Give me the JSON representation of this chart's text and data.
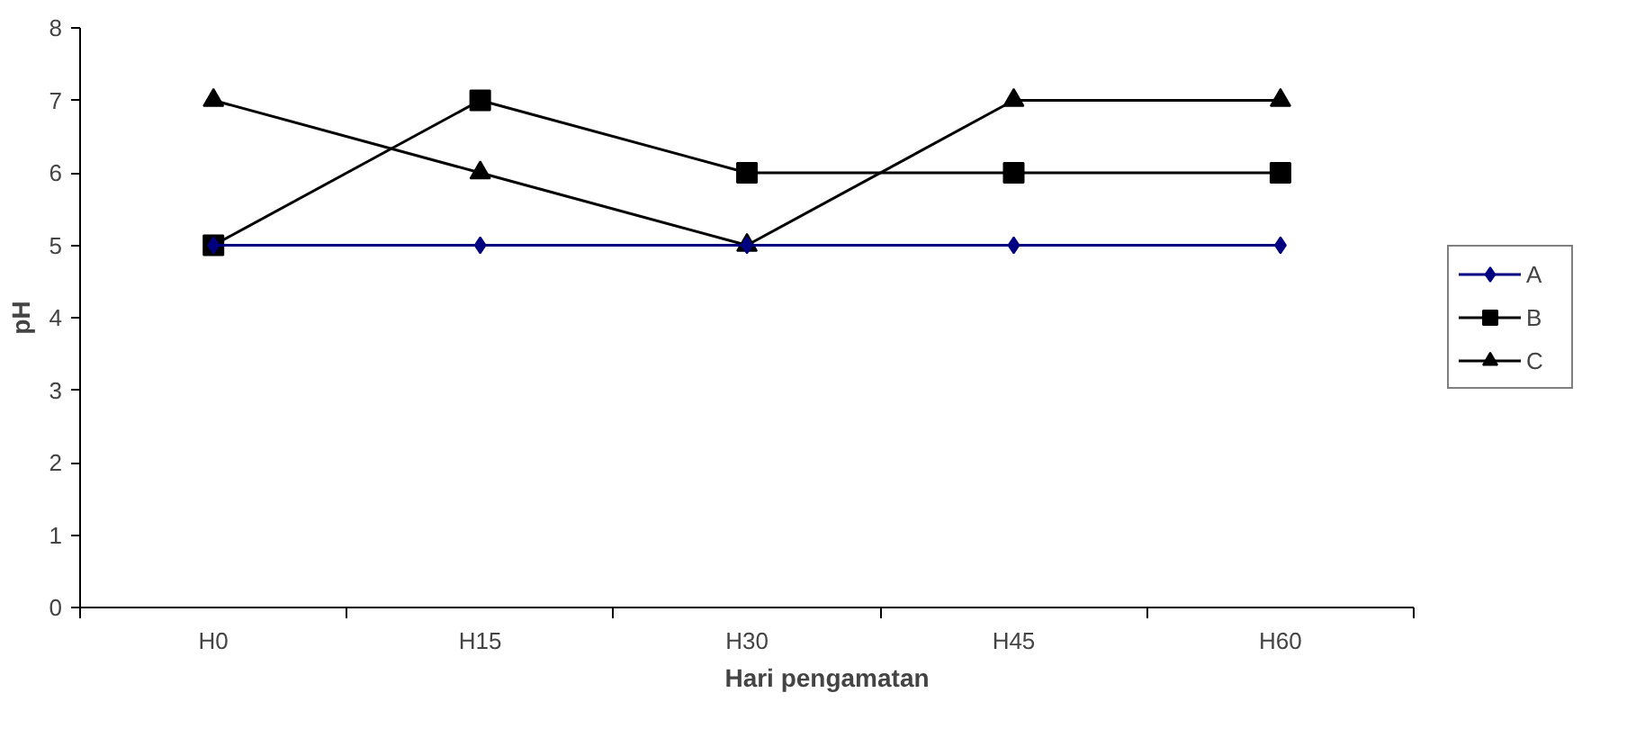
{
  "chart_data": {
    "type": "line",
    "xlabel": "Hari pengamatan",
    "ylabel": "pH",
    "categories": [
      "H0",
      "H15",
      "H30",
      "H45",
      "H60"
    ],
    "series": [
      {
        "name": "A",
        "color": "#000080",
        "values": [
          5,
          5,
          5,
          5,
          5
        ],
        "marker": "diamond"
      },
      {
        "name": "B",
        "color": "#000000",
        "values": [
          5,
          7,
          6,
          6,
          6
        ],
        "marker": "square"
      },
      {
        "name": "C",
        "color": "#000000",
        "values": [
          7,
          6,
          5,
          7,
          7
        ],
        "marker": "triangle"
      }
    ],
    "ylim": [
      0,
      8
    ],
    "yticks": [
      0,
      1,
      2,
      3,
      4,
      5,
      6,
      7,
      8
    ],
    "grid": false,
    "legend": "right",
    "line_style": "solid"
  }
}
